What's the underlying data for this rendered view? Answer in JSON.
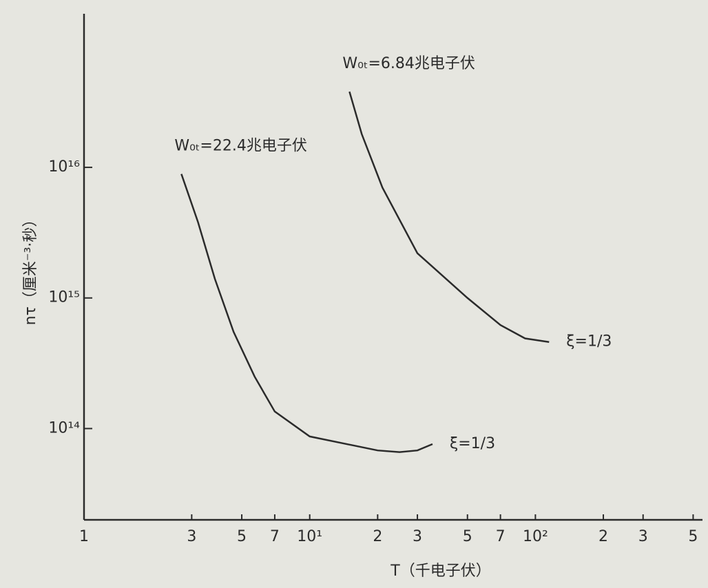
{
  "chart_data": {
    "type": "line",
    "x_label": "T（千电子伏）",
    "y_label": "nτ（厘米⁻³·秒）",
    "xscale": "log",
    "yscale": "log",
    "xlim": [
      1,
      550
    ],
    "ylim": [
      20000000000000,
      150000000000000000
    ],
    "xticks": [
      1,
      3,
      5,
      7,
      {
        "value": 10,
        "label": "10¹"
      },
      {
        "value": 20,
        "label": "2"
      },
      {
        "value": 30,
        "label": "3"
      },
      {
        "value": 50,
        "label": "5"
      },
      {
        "value": 70,
        "label": "7"
      },
      {
        "value": 100,
        "label": "10²"
      },
      {
        "value": 200,
        "label": "2"
      },
      {
        "value": 300,
        "label": "3"
      },
      {
        "value": 500,
        "label": "5"
      }
    ],
    "yticks": [
      {
        "value": 100000000000000,
        "label": "10¹⁴"
      },
      {
        "value": 1000000000000000,
        "label": "10¹⁵"
      },
      {
        "value": 10000000000000000,
        "label": "10¹⁶"
      }
    ],
    "series": [
      {
        "name": "W₀ₜ=22.4兆电子伏",
        "annotation": "ξ=1/3",
        "color": "#2b2b2b",
        "x": [
          2.7,
          3.2,
          3.8,
          4.6,
          5.7,
          7,
          10,
          20,
          25,
          30,
          35
        ],
        "values": [
          8900000000000000,
          3800000000000000,
          1400000000000000,
          550000000000000,
          250000000000000,
          135000000000000,
          87000000000000,
          68000000000000,
          66000000000000,
          68000000000000,
          76000000000000
        ]
      },
      {
        "name": "W₀ₜ=6.84兆电子伏",
        "annotation": "ξ=1/3",
        "color": "#2b2b2b",
        "x": [
          15,
          17,
          21,
          30,
          50,
          70,
          90,
          115
        ],
        "values": [
          38000000000000000,
          18000000000000000,
          7000000000000000,
          2200000000000000,
          1000000000000000,
          620000000000000,
          490000000000000,
          460000000000000
        ]
      }
    ]
  }
}
